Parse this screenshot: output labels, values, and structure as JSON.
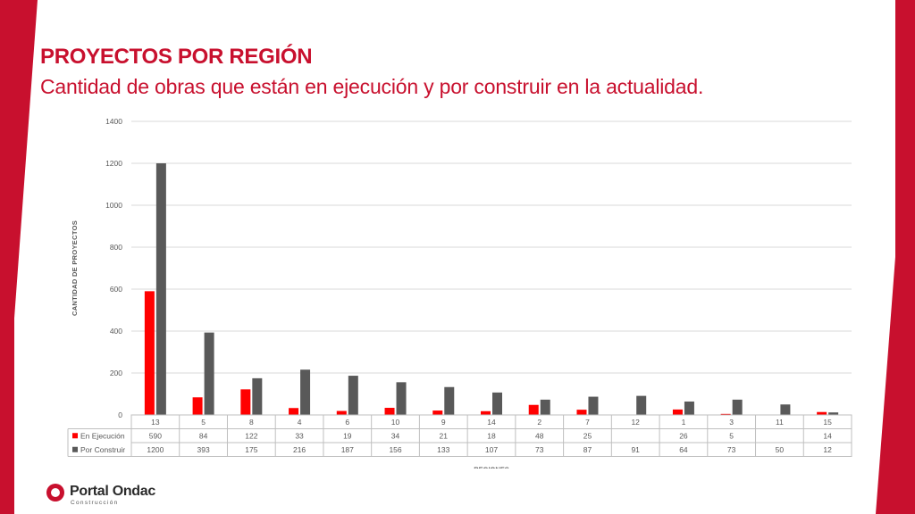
{
  "page": {
    "title": "PROYECTOS POR REGIÓN",
    "subtitle": "Cantidad  de obras que están en ejecución y por construir en la actualidad."
  },
  "colors": {
    "accent": "#c8102e",
    "series1": "#ff0000",
    "series2": "#595959"
  },
  "chart_data": {
    "type": "bar",
    "xlabel": "REGIONES",
    "ylabel": "CANTIDAD DE PROYECTOS",
    "ylim": [
      0,
      1400
    ],
    "yticks": [
      "0",
      "200",
      "400",
      "600",
      "800",
      "1000",
      "1200",
      "1400"
    ],
    "grid": true,
    "legend": "data-table",
    "categories": [
      "13",
      "5",
      "8",
      "4",
      "6",
      "10",
      "9",
      "14",
      "2",
      "7",
      "12",
      "1",
      "3",
      "11",
      "15"
    ],
    "series": [
      {
        "name": "En Ejecución",
        "values": [
          590,
          84,
          122,
          33,
          19,
          34,
          21,
          18,
          48,
          25,
          null,
          26,
          5,
          null,
          14
        ]
      },
      {
        "name": "Por Construir",
        "values": [
          1200,
          393,
          175,
          216,
          187,
          156,
          133,
          107,
          73,
          87,
          91,
          64,
          73,
          50,
          12
        ]
      }
    ]
  },
  "footer": {
    "brand": "Portal Ondac",
    "brand_sub": "Construcción"
  }
}
